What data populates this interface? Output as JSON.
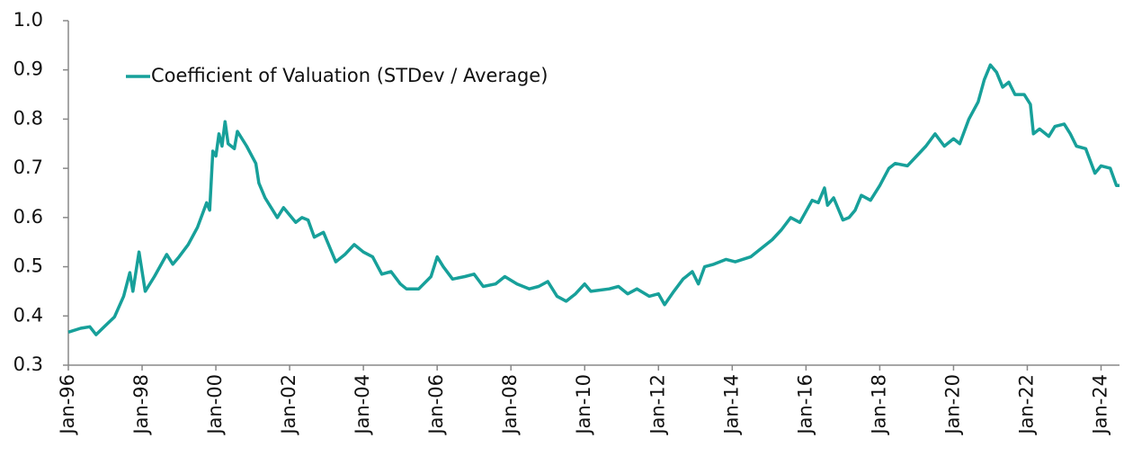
{
  "chart_data": {
    "type": "line",
    "x": [
      "1996-01",
      "1996-05",
      "1996-08",
      "1996-10",
      "1997-01",
      "1997-04",
      "1997-07",
      "1997-09",
      "1997-10",
      "1997-12",
      "1998-02",
      "1998-05",
      "1998-09",
      "1998-11",
      "1999-01",
      "1999-04",
      "1999-07",
      "1999-10",
      "1999-11",
      "1999-12",
      "2000-01",
      "2000-02",
      "2000-03",
      "2000-04",
      "2000-05",
      "2000-07",
      "2000-08",
      "2000-11",
      "2001-02",
      "2001-03",
      "2001-05",
      "2001-07",
      "2001-09",
      "2001-11",
      "2002-03",
      "2002-05",
      "2002-07",
      "2002-09",
      "2002-12",
      "2003-04",
      "2003-07",
      "2003-10",
      "2004-01",
      "2004-04",
      "2004-07",
      "2004-10",
      "2005-01",
      "2005-03",
      "2005-07",
      "2005-11",
      "2006-01",
      "2006-03",
      "2006-06",
      "2006-10",
      "2007-01",
      "2007-04",
      "2007-08",
      "2007-11",
      "2008-03",
      "2008-07",
      "2008-10",
      "2009-01",
      "2009-04",
      "2009-07",
      "2009-10",
      "2010-01",
      "2010-03",
      "2010-09",
      "2010-12",
      "2011-03",
      "2011-06",
      "2011-10",
      "2012-01",
      "2012-03",
      "2012-06",
      "2012-09",
      "2012-12",
      "2013-02",
      "2013-04",
      "2013-07",
      "2013-11",
      "2014-02",
      "2014-07",
      "2014-10",
      "2015-02",
      "2015-05",
      "2015-08",
      "2015-11",
      "2016-03",
      "2016-05",
      "2016-07",
      "2016-08",
      "2016-10",
      "2017-01",
      "2017-03",
      "2017-05",
      "2017-07",
      "2017-10",
      "2018-01",
      "2018-04",
      "2018-06",
      "2018-10",
      "2019-01",
      "2019-04",
      "2019-07",
      "2019-10",
      "2020-01",
      "2020-03",
      "2020-06",
      "2020-09",
      "2020-11",
      "2021-01",
      "2021-03",
      "2021-05",
      "2021-07",
      "2021-09",
      "2021-12",
      "2022-02",
      "2022-03",
      "2022-05",
      "2022-08",
      "2022-10",
      "2023-01",
      "2023-03",
      "2023-05",
      "2023-08",
      "2023-11",
      "2024-01",
      "2024-04",
      "2024-06",
      "2024-07"
    ],
    "series": [
      {
        "name": "Coefficient of Valuation (STDev / Average)",
        "color": "#17a09a",
        "values": [
          0.367,
          0.375,
          0.378,
          0.362,
          0.38,
          0.398,
          0.44,
          0.488,
          0.45,
          0.53,
          0.45,
          0.48,
          0.525,
          0.505,
          0.52,
          0.545,
          0.58,
          0.63,
          0.615,
          0.735,
          0.725,
          0.77,
          0.745,
          0.795,
          0.75,
          0.74,
          0.775,
          0.745,
          0.71,
          0.67,
          0.64,
          0.62,
          0.6,
          0.62,
          0.59,
          0.6,
          0.595,
          0.56,
          0.57,
          0.51,
          0.525,
          0.545,
          0.53,
          0.52,
          0.485,
          0.49,
          0.465,
          0.455,
          0.455,
          0.48,
          0.52,
          0.5,
          0.475,
          0.48,
          0.485,
          0.46,
          0.465,
          0.48,
          0.465,
          0.455,
          0.46,
          0.47,
          0.44,
          0.43,
          0.445,
          0.465,
          0.45,
          0.455,
          0.46,
          0.445,
          0.455,
          0.44,
          0.445,
          0.423,
          0.45,
          0.475,
          0.49,
          0.465,
          0.5,
          0.505,
          0.515,
          0.51,
          0.52,
          0.535,
          0.555,
          0.575,
          0.6,
          0.59,
          0.635,
          0.63,
          0.66,
          0.625,
          0.64,
          0.595,
          0.6,
          0.615,
          0.645,
          0.635,
          0.665,
          0.7,
          0.71,
          0.705,
          0.725,
          0.745,
          0.77,
          0.745,
          0.76,
          0.75,
          0.8,
          0.835,
          0.88,
          0.91,
          0.895,
          0.865,
          0.875,
          0.85,
          0.85,
          0.83,
          0.77,
          0.78,
          0.765,
          0.785,
          0.79,
          0.77,
          0.745,
          0.74,
          0.69,
          0.705,
          0.7,
          0.665,
          0.665
        ]
      }
    ],
    "xlim": [
      "1996-01",
      "2024-07"
    ],
    "xticks": [
      {
        "value": "1996-01",
        "label": "Jan-96"
      },
      {
        "value": "1998-01",
        "label": "Jan-98"
      },
      {
        "value": "2000-01",
        "label": "Jan-00"
      },
      {
        "value": "2002-01",
        "label": "Jan-02"
      },
      {
        "value": "2004-01",
        "label": "Jan-04"
      },
      {
        "value": "2006-01",
        "label": "Jan-06"
      },
      {
        "value": "2008-01",
        "label": "Jan-08"
      },
      {
        "value": "2010-01",
        "label": "Jan-10"
      },
      {
        "value": "2012-01",
        "label": "Jan-12"
      },
      {
        "value": "2014-01",
        "label": "Jan-14"
      },
      {
        "value": "2016-01",
        "label": "Jan-16"
      },
      {
        "value": "2018-01",
        "label": "Jan-18"
      },
      {
        "value": "2020-01",
        "label": "Jan-20"
      },
      {
        "value": "2022-01",
        "label": "Jan-22"
      },
      {
        "value": "2024-01",
        "label": "Jan-24"
      }
    ],
    "ylim": [
      0.3,
      1
    ],
    "yticks": [
      0.3,
      0.4,
      0.5,
      0.6,
      0.7,
      0.8,
      0.9,
      {
        "value": 1,
        "label": "1.0"
      }
    ],
    "grid": false,
    "legend": "upper left"
  }
}
